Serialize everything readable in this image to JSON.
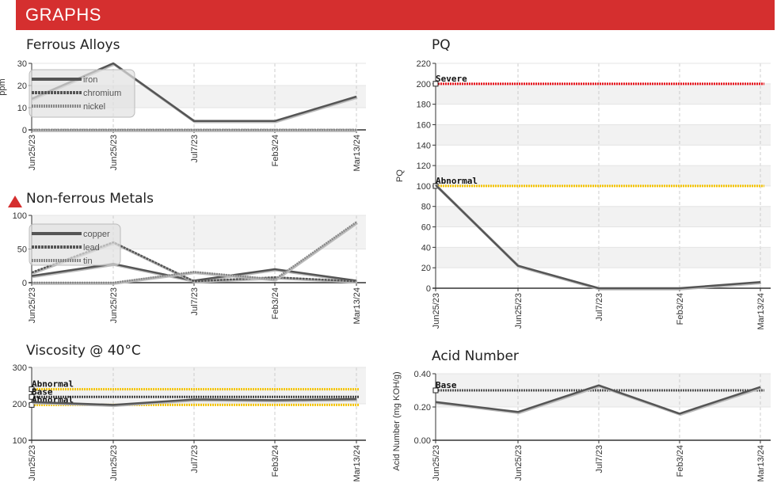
{
  "header": {
    "title": "GRAPHS"
  },
  "chart_data": [
    {
      "id": "ferrous",
      "type": "line",
      "title": "Ferrous Alloys",
      "ylabel": "ppm",
      "xlabel": "",
      "categories": [
        "Jun25/23",
        "Jun25/23",
        "Jul7/23",
        "Feb3/24",
        "Mar13/24"
      ],
      "ylim": [
        0,
        30
      ],
      "yticks": [
        0,
        10,
        20,
        30
      ],
      "grid": true,
      "legend": "top-left",
      "series": [
        {
          "name": "iron",
          "values": [
            14,
            30,
            4,
            4,
            15
          ],
          "color": "#555555",
          "dash": "none"
        },
        {
          "name": "chromium",
          "values": [
            0,
            0,
            0,
            0,
            0
          ],
          "color": "#555555",
          "dash": "3,1"
        },
        {
          "name": "nickel",
          "values": [
            0,
            0,
            0,
            0,
            0
          ],
          "color": "#888888",
          "dash": "2,1"
        }
      ],
      "limits": []
    },
    {
      "id": "nonferrous",
      "type": "line",
      "title": "Non-ferrous Metals",
      "ylabel": "",
      "xlabel": "",
      "categories": [
        "Jun25/23",
        "Jun25/23",
        "Jul7/23",
        "Feb3/24",
        "Mar13/24"
      ],
      "ylim": [
        0,
        100
      ],
      "yticks": [
        0,
        50,
        100
      ],
      "grid": true,
      "legend": "top-left",
      "series": [
        {
          "name": "copper",
          "values": [
            10,
            28,
            3,
            20,
            3
          ],
          "color": "#555555",
          "dash": "none"
        },
        {
          "name": "lead",
          "values": [
            15,
            60,
            2,
            8,
            2
          ],
          "color": "#555555",
          "dash": "3,1"
        },
        {
          "name": "tin",
          "values": [
            0,
            0,
            16,
            5,
            90
          ],
          "color": "#888888",
          "dash": "2,1"
        }
      ],
      "limits": []
    },
    {
      "id": "viscosity",
      "type": "line",
      "title": "Viscosity @ 40°C",
      "ylabel": "",
      "xlabel": "",
      "categories": [
        "Jun25/23",
        "Jun25/23",
        "Jul7/23",
        "Feb3/24",
        "Mar13/24"
      ],
      "ylim": [
        100,
        300
      ],
      "yticks": [
        100,
        200,
        300
      ],
      "grid": true,
      "legend": "none",
      "series": [
        {
          "name": "",
          "values": [
            205,
            197,
            212,
            210,
            213
          ],
          "color": "#555555",
          "dash": "none"
        }
      ],
      "limits": [
        {
          "label": "Abnormal",
          "value": 240,
          "color": "#f5c400"
        },
        {
          "label": "Base",
          "value": 219,
          "color": "#444444"
        },
        {
          "label": "Abnormal",
          "value": 197,
          "color": "#f5c400"
        }
      ]
    },
    {
      "id": "pq",
      "type": "line",
      "title": "PQ",
      "ylabel": "PQ",
      "xlabel": "",
      "categories": [
        "Jun25/23",
        "Jun25/23",
        "Jul7/23",
        "Feb3/24",
        "Mar13/24"
      ],
      "ylim": [
        0,
        220
      ],
      "yticks": [
        0,
        20,
        40,
        60,
        80,
        100,
        120,
        140,
        160,
        180,
        200,
        220
      ],
      "grid": true,
      "legend": "none",
      "series": [
        {
          "name": "",
          "values": [
            101,
            22,
            0,
            0,
            6
          ],
          "color": "#555555",
          "dash": "none"
        }
      ],
      "limits": [
        {
          "label": "Severe",
          "value": 200,
          "color": "#e8131b"
        },
        {
          "label": "Abnormal",
          "value": 100,
          "color": "#f5c400"
        }
      ]
    },
    {
      "id": "acid",
      "type": "line",
      "title": "Acid Number",
      "ylabel": "Acid Number (mg KOH/g)",
      "xlabel": "",
      "categories": [
        "Jun25/23",
        "Jun25/23",
        "Jul7/23",
        "Feb3/24",
        "Mar13/24"
      ],
      "ylim": [
        0,
        0.4
      ],
      "yticks": [
        "0.00",
        "0.20",
        "0.40"
      ],
      "grid": true,
      "legend": "none",
      "series": [
        {
          "name": "",
          "values": [
            0.23,
            0.17,
            0.33,
            0.16,
            0.32
          ],
          "color": "#555555",
          "dash": "none"
        }
      ],
      "limits": [
        {
          "label": "Base",
          "value": 0.3,
          "color": "#555555"
        }
      ]
    }
  ]
}
